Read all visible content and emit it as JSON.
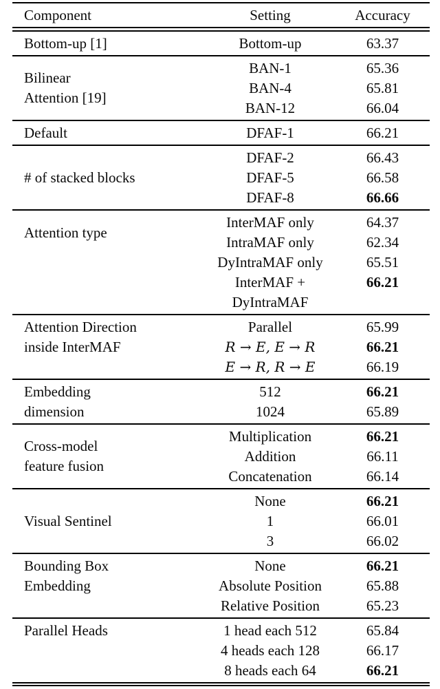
{
  "colors": {
    "text": "#0a0a0a",
    "rule": "#000000",
    "background": "#ffffff"
  },
  "table": {
    "columns": [
      "Component",
      "Setting",
      "Accuracy"
    ],
    "sections": [
      {
        "component_lines": [
          "Bottom-up [1]"
        ],
        "label_valign": "center",
        "rows": [
          {
            "setting_lines": [
              "Bottom-up"
            ],
            "accuracy": "63.37",
            "accuracy_bold": false,
            "is_math": false
          }
        ]
      },
      {
        "component_lines": [
          "Bilinear",
          "Attention [19]"
        ],
        "label_valign": "center",
        "rows": [
          {
            "setting_lines": [
              "BAN-1"
            ],
            "accuracy": "65.36",
            "accuracy_bold": false,
            "is_math": false
          },
          {
            "setting_lines": [
              "BAN-4"
            ],
            "accuracy": "65.81",
            "accuracy_bold": false,
            "is_math": false
          },
          {
            "setting_lines": [
              "BAN-12"
            ],
            "accuracy": "66.04",
            "accuracy_bold": false,
            "is_math": false
          }
        ]
      },
      {
        "component_lines": [
          "Default"
        ],
        "label_valign": "center",
        "rows": [
          {
            "setting_lines": [
              "DFAF-1"
            ],
            "accuracy": "66.21",
            "accuracy_bold": false,
            "is_math": false
          }
        ]
      },
      {
        "component_lines": [
          "# of stacked blocks"
        ],
        "label_valign": "center",
        "rows": [
          {
            "setting_lines": [
              "DFAF-2"
            ],
            "accuracy": "66.43",
            "accuracy_bold": false,
            "is_math": false
          },
          {
            "setting_lines": [
              "DFAF-5"
            ],
            "accuracy": "66.58",
            "accuracy_bold": false,
            "is_math": false
          },
          {
            "setting_lines": [
              "DFAF-8"
            ],
            "accuracy": "66.66",
            "accuracy_bold": true,
            "is_math": false
          }
        ]
      },
      {
        "component_lines": [
          "Attention type"
        ],
        "label_valign": "upper",
        "rows": [
          {
            "setting_lines": [
              "InterMAF only"
            ],
            "accuracy": "64.37",
            "accuracy_bold": false,
            "is_math": false
          },
          {
            "setting_lines": [
              "IntraMAF only"
            ],
            "accuracy": "62.34",
            "accuracy_bold": false,
            "is_math": false
          },
          {
            "setting_lines": [
              "DyIntraMAF only"
            ],
            "accuracy": "65.51",
            "accuracy_bold": false,
            "is_math": false
          },
          {
            "setting_lines": [
              "InterMAF +",
              "DyIntraMAF"
            ],
            "accuracy": "66.21",
            "accuracy_bold": true,
            "is_math": false
          }
        ]
      },
      {
        "component_lines": [
          "Attention Direction",
          "inside InterMAF"
        ],
        "label_valign": "top",
        "rows": [
          {
            "setting_lines": [
              "Parallel"
            ],
            "accuracy": "65.99",
            "accuracy_bold": false,
            "is_math": false
          },
          {
            "setting_lines": [
              "R → E, E → R"
            ],
            "accuracy": "66.21",
            "accuracy_bold": true,
            "is_math": true
          },
          {
            "setting_lines": [
              "E → R, R → E"
            ],
            "accuracy": "66.19",
            "accuracy_bold": false,
            "is_math": true
          }
        ]
      },
      {
        "component_lines": [
          "Embedding",
          "dimension"
        ],
        "label_valign": "top",
        "rows": [
          {
            "setting_lines": [
              "512"
            ],
            "accuracy": "66.21",
            "accuracy_bold": true,
            "is_math": false
          },
          {
            "setting_lines": [
              "1024"
            ],
            "accuracy": "65.89",
            "accuracy_bold": false,
            "is_math": false
          }
        ]
      },
      {
        "component_lines": [
          "Cross-model",
          "feature fusion"
        ],
        "label_valign": "center",
        "rows": [
          {
            "setting_lines": [
              "Multiplication"
            ],
            "accuracy": "66.21",
            "accuracy_bold": true,
            "is_math": false
          },
          {
            "setting_lines": [
              "Addition"
            ],
            "accuracy": "66.11",
            "accuracy_bold": false,
            "is_math": false
          },
          {
            "setting_lines": [
              "Concatenation"
            ],
            "accuracy": "66.14",
            "accuracy_bold": false,
            "is_math": false
          }
        ]
      },
      {
        "component_lines": [
          "Visual Sentinel"
        ],
        "label_valign": "center",
        "rows": [
          {
            "setting_lines": [
              "None"
            ],
            "accuracy": "66.21",
            "accuracy_bold": true,
            "is_math": false
          },
          {
            "setting_lines": [
              "1"
            ],
            "accuracy": "66.01",
            "accuracy_bold": false,
            "is_math": false
          },
          {
            "setting_lines": [
              "3"
            ],
            "accuracy": "66.02",
            "accuracy_bold": false,
            "is_math": false
          }
        ]
      },
      {
        "component_lines": [
          "Bounding Box",
          "Embedding"
        ],
        "label_valign": "top",
        "rows": [
          {
            "setting_lines": [
              "None"
            ],
            "accuracy": "66.21",
            "accuracy_bold": true,
            "is_math": false
          },
          {
            "setting_lines": [
              "Absolute Position"
            ],
            "accuracy": "65.88",
            "accuracy_bold": false,
            "is_math": false
          },
          {
            "setting_lines": [
              "Relative Position"
            ],
            "accuracy": "65.23",
            "accuracy_bold": false,
            "is_math": false
          }
        ]
      },
      {
        "component_lines": [
          "Parallel Heads"
        ],
        "label_valign": "top",
        "rows": [
          {
            "setting_lines": [
              "1 head each 512"
            ],
            "accuracy": "65.84",
            "accuracy_bold": false,
            "is_math": false
          },
          {
            "setting_lines": [
              "4 heads each 128"
            ],
            "accuracy": "66.17",
            "accuracy_bold": false,
            "is_math": false
          },
          {
            "setting_lines": [
              "8 heads each 64"
            ],
            "accuracy": "66.21",
            "accuracy_bold": true,
            "is_math": false
          }
        ]
      }
    ]
  }
}
